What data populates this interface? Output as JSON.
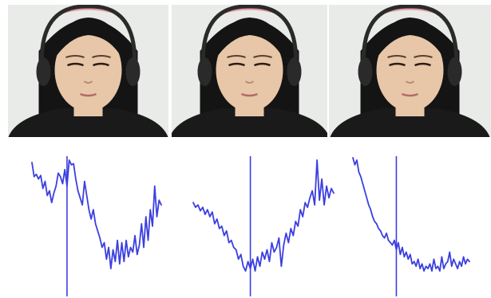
{
  "colors": {
    "trace": "#3b3fe0",
    "marker": "#3b3fe0",
    "background": "#ffffff",
    "wall": "#e9ebe8",
    "skin": "#e8c6a8",
    "hair": "#141414",
    "shirt": "#1a1a1a",
    "headphone": "#2a2a2a",
    "headband": "#e79aa8"
  },
  "frames": [
    {
      "id": "frame-1",
      "subject": "face-still-1"
    },
    {
      "id": "frame-2",
      "subject": "face-still-2"
    },
    {
      "id": "frame-3",
      "subject": "face-still-3"
    }
  ],
  "chart_data": [
    {
      "type": "line",
      "title": "",
      "xlabel": "",
      "ylabel": "",
      "grid": false,
      "axes_visible": false,
      "xlim": [
        0,
        59
      ],
      "ylim": [
        0,
        1
      ],
      "marker_x": 16,
      "series": [
        {
          "values": [
            0.96,
            0.84,
            0.86,
            0.82,
            0.85,
            0.74,
            0.8,
            0.68,
            0.72,
            0.62,
            0.7,
            0.76,
            0.87,
            0.84,
            0.78,
            0.9,
            0.76,
            0.98,
            0.94,
            0.95,
            0.82,
            0.72,
            0.66,
            0.6,
            0.8,
            0.68,
            0.56,
            0.48,
            0.56,
            0.44,
            0.38,
            0.32,
            0.24,
            0.28,
            0.14,
            0.24,
            0.06,
            0.22,
            0.12,
            0.3,
            0.1,
            0.28,
            0.12,
            0.3,
            0.16,
            0.24,
            0.2,
            0.34,
            0.18,
            0.26,
            0.44,
            0.24,
            0.5,
            0.3,
            0.56,
            0.42,
            0.76,
            0.5,
            0.64,
            0.6
          ]
        }
      ]
    },
    {
      "type": "line",
      "title": "",
      "xlabel": "",
      "ylabel": "",
      "grid": false,
      "axes_visible": false,
      "xlim": [
        0,
        59
      ],
      "ylim": [
        0,
        1
      ],
      "marker_x": 24,
      "series": [
        {
          "values": [
            0.62,
            0.58,
            0.6,
            0.55,
            0.58,
            0.52,
            0.56,
            0.5,
            0.54,
            0.44,
            0.48,
            0.4,
            0.42,
            0.34,
            0.38,
            0.28,
            0.3,
            0.24,
            0.22,
            0.14,
            0.18,
            0.08,
            0.04,
            0.12,
            0.06,
            0.14,
            0.04,
            0.16,
            0.08,
            0.2,
            0.14,
            0.22,
            0.12,
            0.28,
            0.2,
            0.24,
            0.32,
            0.08,
            0.26,
            0.36,
            0.28,
            0.4,
            0.34,
            0.46,
            0.42,
            0.56,
            0.5,
            0.62,
            0.58,
            0.66,
            0.72,
            0.6,
            0.98,
            0.64,
            0.82,
            0.6,
            0.76,
            0.66,
            0.74,
            0.7
          ]
        }
      ]
    },
    {
      "type": "line",
      "title": "",
      "xlabel": "",
      "ylabel": "",
      "grid": false,
      "axes_visible": false,
      "xlim": [
        0,
        59
      ],
      "ylim": [
        0,
        1
      ],
      "marker_x": 22,
      "series": [
        {
          "values": [
            1.0,
            0.94,
            0.98,
            0.88,
            0.84,
            0.78,
            0.72,
            0.66,
            0.6,
            0.56,
            0.5,
            0.46,
            0.44,
            0.4,
            0.38,
            0.34,
            0.32,
            0.36,
            0.3,
            0.28,
            0.26,
            0.3,
            0.22,
            0.28,
            0.18,
            0.24,
            0.16,
            0.2,
            0.14,
            0.18,
            0.1,
            0.12,
            0.08,
            0.14,
            0.06,
            0.1,
            0.04,
            0.08,
            0.06,
            0.1,
            0.04,
            0.14,
            0.06,
            0.08,
            0.04,
            0.16,
            0.06,
            0.1,
            0.12,
            0.2,
            0.08,
            0.14,
            0.1,
            0.06,
            0.12,
            0.08,
            0.16,
            0.1,
            0.14,
            0.12
          ]
        }
      ]
    }
  ]
}
